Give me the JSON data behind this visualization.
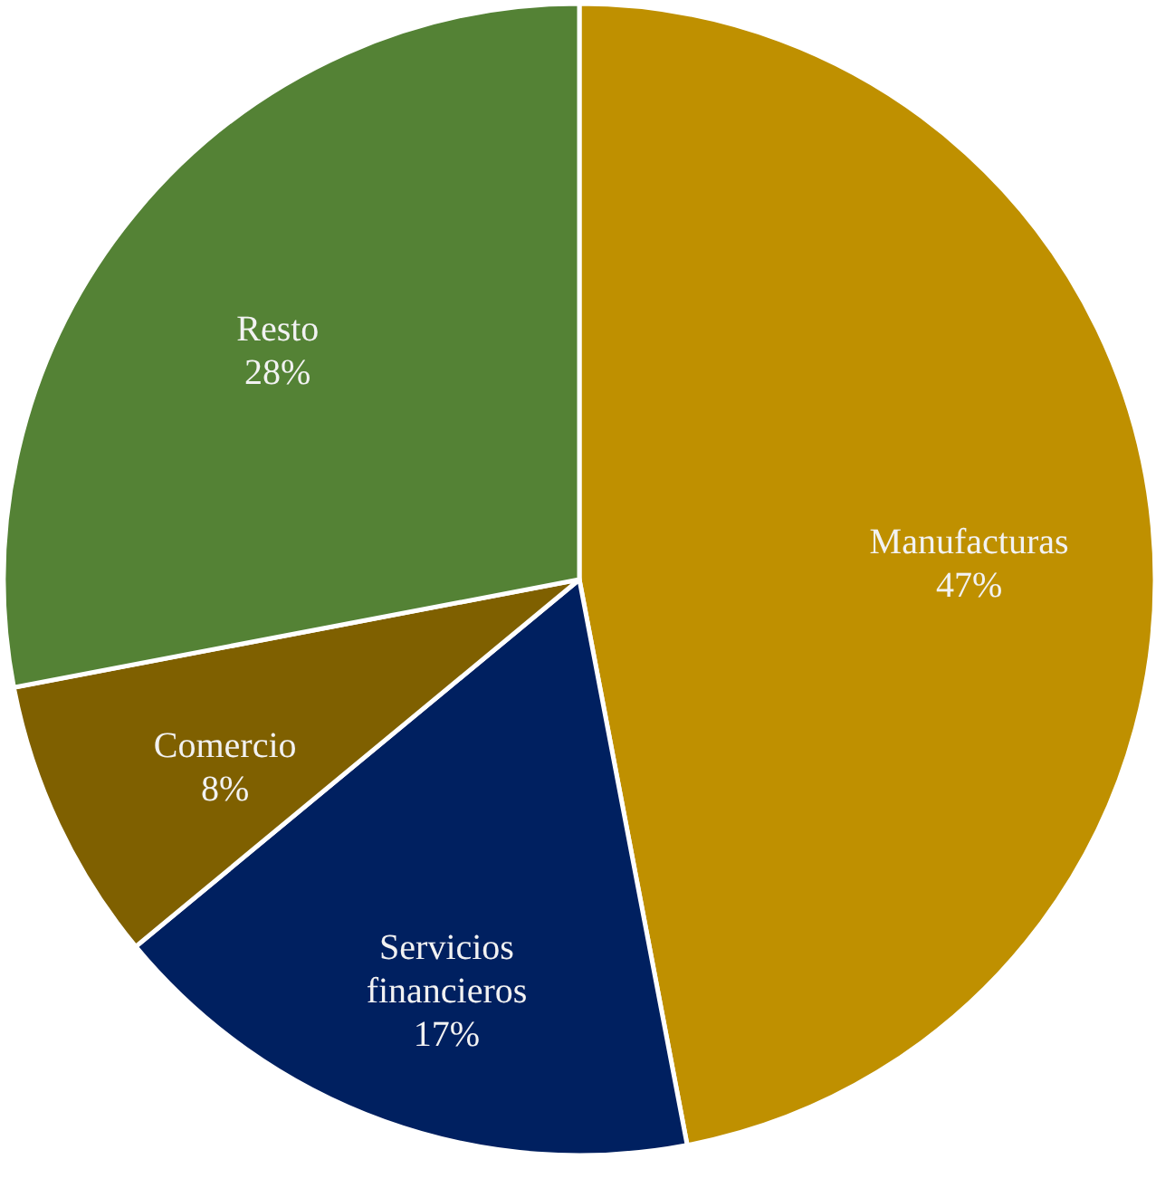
{
  "chart_data": {
    "type": "pie",
    "categories": [
      "Manufacturas",
      "Servicios financieros",
      "Comercio",
      "Resto"
    ],
    "values": [
      47,
      17,
      8,
      28
    ],
    "colors": [
      "#bf9000",
      "#002060",
      "#7f6000",
      "#548235"
    ],
    "value_labels": [
      "47%",
      "17%",
      "8%",
      "28%"
    ]
  }
}
